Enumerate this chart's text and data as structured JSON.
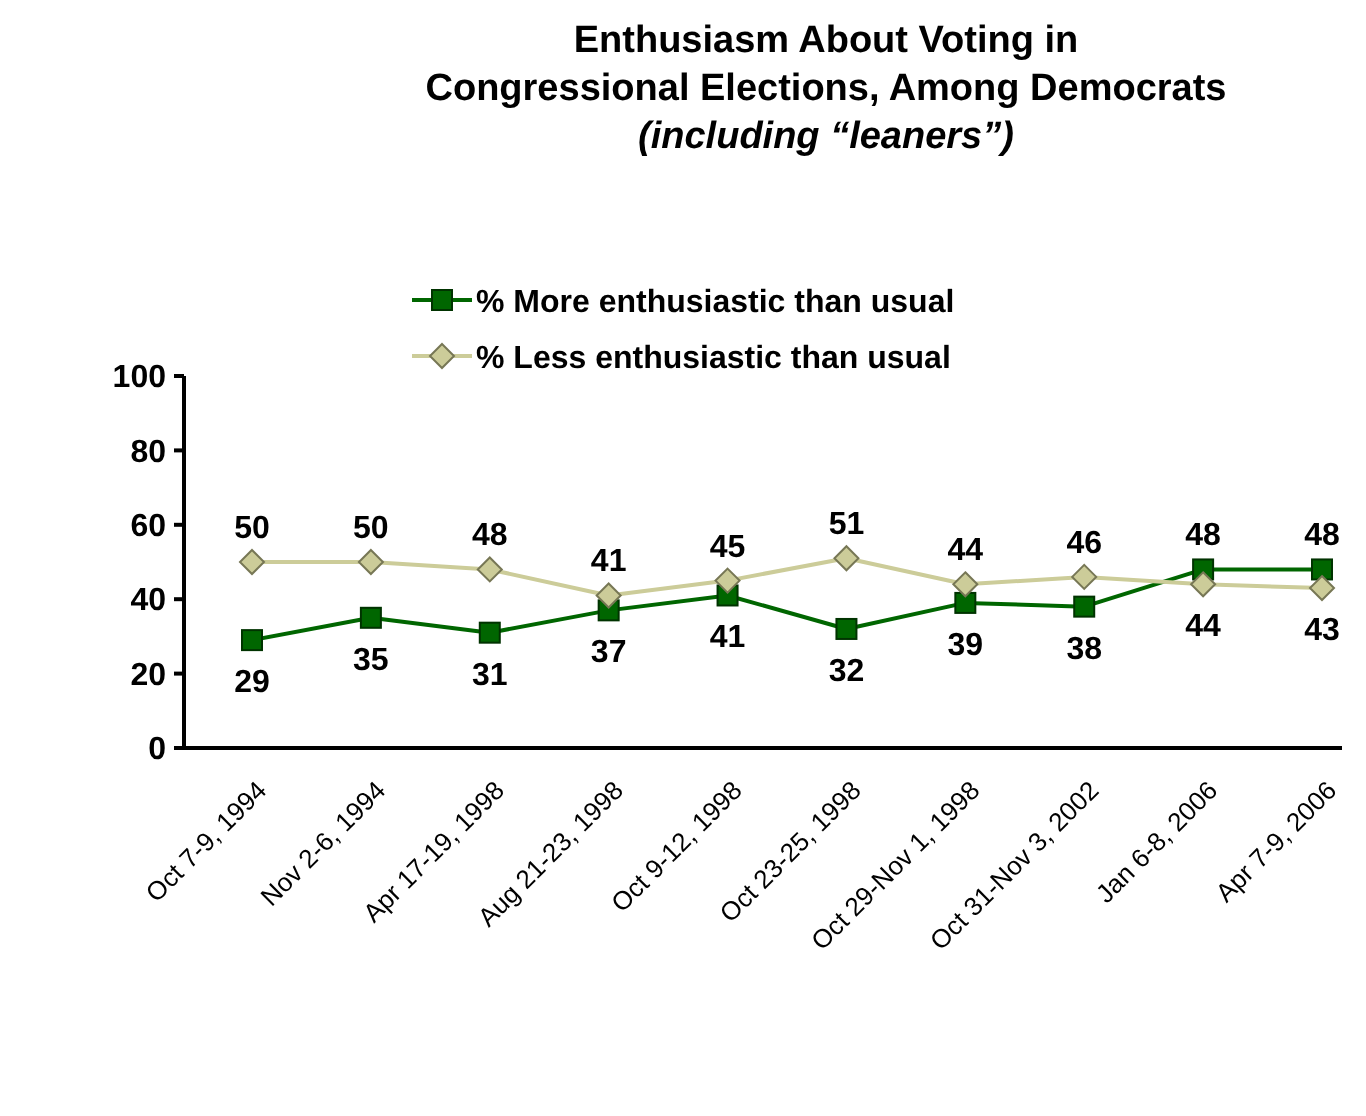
{
  "chart_data": {
    "type": "line",
    "title": "Enthusiasm About Voting in\nCongressional Elections, Among Democrats",
    "subtitle": "(including “leaners”)",
    "categories": [
      "Oct 7-9, 1994",
      "Nov 2-6, 1994",
      "Apr 17-19, 1998",
      "Aug 21-23, 1998",
      "Oct 9-12, 1998",
      "Oct 23-25, 1998",
      "Oct 29-Nov 1, 1998",
      "Oct 31-Nov 3, 2002",
      "Jan 6-8, 2006",
      "Apr 7-9, 2006"
    ],
    "series": [
      {
        "name": "% More enthusiastic than usual",
        "color": "#006600",
        "marker": "square",
        "values": [
          29,
          35,
          31,
          37,
          41,
          32,
          39,
          38,
          48,
          48
        ]
      },
      {
        "name": "% Less enthusiastic than usual",
        "color": "#cccc99",
        "marker": "diamond",
        "values": [
          50,
          50,
          48,
          41,
          45,
          51,
          44,
          46,
          44,
          43
        ]
      }
    ],
    "ylim": [
      0,
      100
    ],
    "yticks": [
      0,
      20,
      40,
      60,
      80,
      100
    ],
    "grid": false,
    "legend": "top",
    "data_labels": true,
    "line_style": "solid"
  }
}
